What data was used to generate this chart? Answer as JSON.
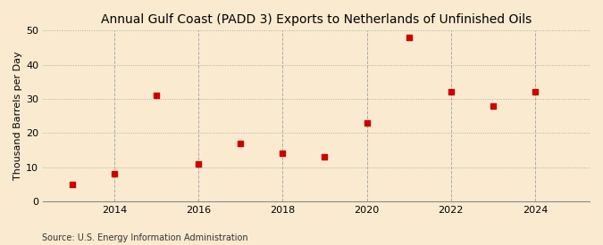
{
  "title": "Annual Gulf Coast (PADD 3) Exports to Netherlands of Unfinished Oils",
  "ylabel": "Thousand Barrels per Day",
  "source": "Source: U.S. Energy Information Administration",
  "years": [
    2013,
    2014,
    2015,
    2016,
    2017,
    2018,
    2019,
    2020,
    2021,
    2022,
    2023,
    2024
  ],
  "values": [
    5.0,
    8.0,
    31.0,
    11.0,
    17.0,
    14.0,
    13.0,
    23.0,
    48.0,
    32.0,
    28.0,
    32.0
  ],
  "marker_color": "#cc0000",
  "marker": "s",
  "marker_size": 4,
  "background_color": "#faebd0",
  "grid_color": "#aaaaaa",
  "xlim": [
    2012.3,
    2025.3
  ],
  "ylim": [
    0,
    50
  ],
  "yticks": [
    0,
    10,
    20,
    30,
    40,
    50
  ],
  "xticks": [
    2014,
    2016,
    2018,
    2020,
    2022,
    2024
  ],
  "title_fontsize": 10,
  "label_fontsize": 8,
  "tick_fontsize": 8,
  "source_fontsize": 7
}
